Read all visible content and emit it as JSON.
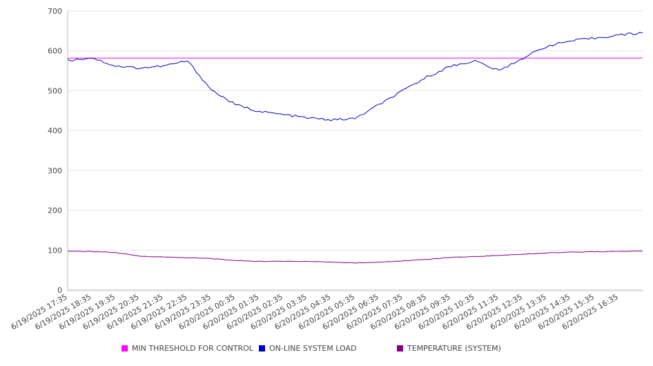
{
  "chart_data": {
    "type": "line",
    "title": "",
    "xlabel": "",
    "ylabel": "",
    "ylim": [
      0,
      700
    ],
    "yticks": [
      0,
      100,
      200,
      300,
      400,
      500,
      600,
      700
    ],
    "grid": true,
    "legend_position": "bottom",
    "x_tick_labels": [
      "6/19/2025 17:35",
      "6/19/2025 18:35",
      "6/19/2025 19:35",
      "6/19/2025 20:35",
      "6/19/2025 21:35",
      "6/19/2025 22:35",
      "6/19/2025 23:35",
      "6/20/2025 00:35",
      "6/20/2025 01:35",
      "6/20/2025 02:35",
      "6/20/2025 03:35",
      "6/20/2025 04:35",
      "6/20/2025 05:35",
      "6/20/2025 06:35",
      "6/20/2025 07:35",
      "6/20/2025 08:35",
      "6/20/2025 09:35",
      "6/20/2025 10:35",
      "6/20/2025 11:35",
      "6/20/2025 12:35",
      "6/20/2025 13:35",
      "6/20/2025 14:35",
      "6/20/2025 15:35",
      "6/20/2025 16:35"
    ],
    "x_end": "6/20/2025 17:35",
    "series": [
      {
        "name": "MIN THRESHOLD FOR CONTROL",
        "color": "#ff00ff",
        "values": [
          582,
          582,
          582,
          582,
          582,
          582,
          582,
          582,
          582,
          582,
          582,
          582,
          582,
          582,
          582,
          582,
          582,
          582,
          582,
          582,
          582,
          582,
          582,
          582,
          582
        ]
      },
      {
        "name": "ON-LINE SYSTEM LOAD",
        "color": "#0000cc",
        "values": [
          576,
          583,
          562,
          557,
          562,
          575,
          502,
          465,
          448,
          440,
          432,
          427,
          430,
          465,
          500,
          535,
          562,
          575,
          550,
          582,
          612,
          625,
          632,
          640,
          645
        ]
      },
      {
        "name": "TEMPERATURE (SYSTEM)",
        "color": "#800080",
        "values": [
          97,
          97,
          94,
          85,
          83,
          81,
          79,
          74,
          72,
          72,
          72,
          70,
          68,
          70,
          73,
          77,
          82,
          84,
          87,
          90,
          93,
          95,
          96,
          97,
          98
        ]
      }
    ]
  }
}
